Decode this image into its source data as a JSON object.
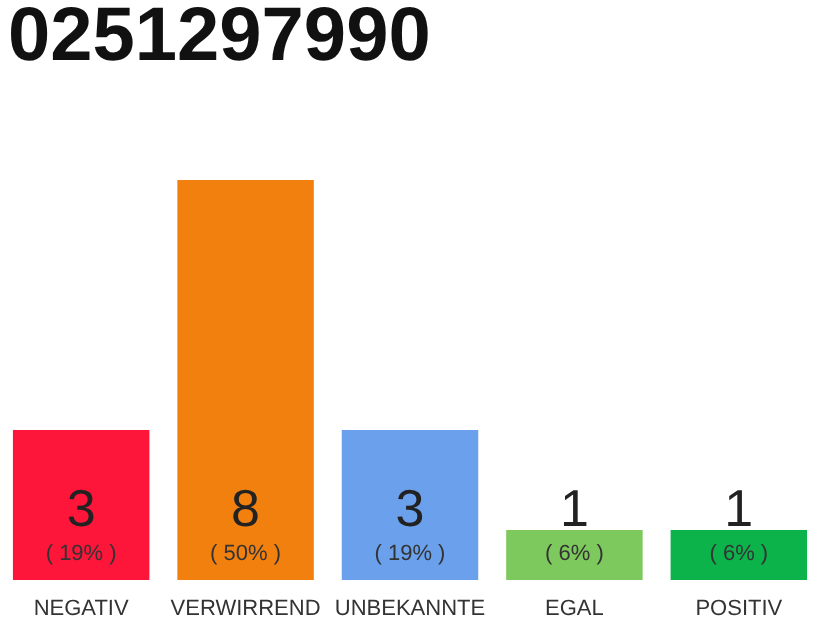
{
  "chart_data": {
    "type": "bar",
    "title": "0251297990",
    "categories": [
      "NEGATIV",
      "VERWIRREND",
      "UNBEKANNTE",
      "EGAL",
      "POSITIV"
    ],
    "values": [
      3,
      8,
      3,
      1,
      1
    ],
    "colors": [
      "#fe163a",
      "#f2800f",
      "#6aa0ec",
      "#7dc95e",
      "#0bb34a"
    ],
    "data_labels": true,
    "annotations": [
      "( 19% )",
      "( 50% )",
      "( 19% )",
      "( 6% )",
      "( 6% )"
    ]
  }
}
